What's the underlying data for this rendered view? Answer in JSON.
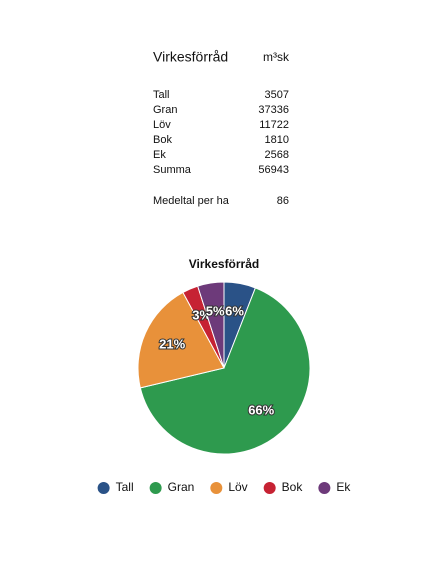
{
  "table": {
    "title": "Virkesförråd",
    "unit": "m³sk",
    "rows": [
      [
        "Tall",
        3507
      ],
      [
        "Gran",
        37336
      ],
      [
        "Löv",
        11722
      ],
      [
        "Bok",
        1810
      ],
      [
        "Ek",
        2568
      ],
      [
        "Summa",
        56943
      ]
    ],
    "summary": [
      "Medeltal per ha",
      86
    ]
  },
  "chart_data": {
    "type": "pie",
    "title": "Virkesförråd",
    "categories": [
      "Tall",
      "Gran",
      "Löv",
      "Bok",
      "Ek"
    ],
    "values": [
      6,
      66,
      21,
      3,
      5
    ],
    "value_labels": [
      "6%",
      "66%",
      "21%",
      "3%",
      "5%"
    ],
    "colors": [
      "#2a5287",
      "#2e9a4e",
      "#e8913a",
      "#c62233",
      "#6d3a7a"
    ],
    "legend": "bottom"
  }
}
